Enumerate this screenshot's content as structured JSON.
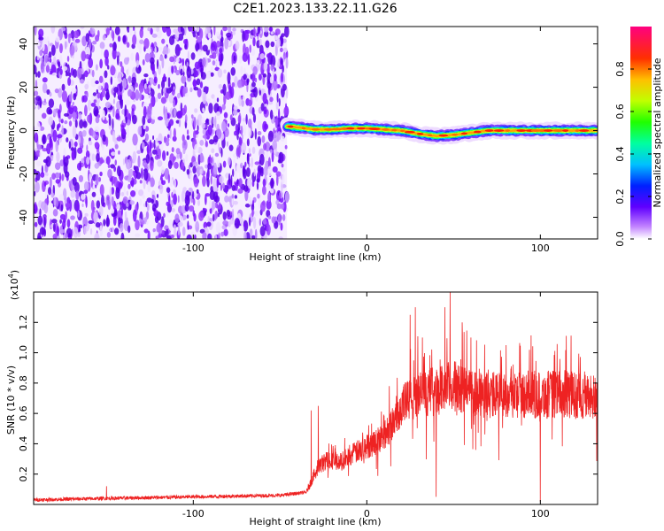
{
  "title": "C2E1.2023.133.22.11.G26",
  "chart_data": [
    {
      "type": "heatmap",
      "xlabel": "Height of straight line (km)",
      "ylabel": "Frequency (Hz)",
      "xlim": [
        -192,
        133
      ],
      "ylim": [
        -50,
        48
      ],
      "x_ticks": [
        -100,
        0,
        100
      ],
      "y_ticks": [
        -40,
        -20,
        0,
        20,
        40
      ],
      "noise_region": {
        "x": [
          -192,
          -46
        ],
        "frequency_range": [
          -50,
          48
        ]
      },
      "signal_track": [
        {
          "x": -46,
          "f": 2.0
        },
        {
          "x": -40,
          "f": 1.5
        },
        {
          "x": -30,
          "f": 0.5
        },
        {
          "x": -20,
          "f": 0.5
        },
        {
          "x": -10,
          "f": 1.0
        },
        {
          "x": 0,
          "f": 1.0
        },
        {
          "x": 10,
          "f": 0.5
        },
        {
          "x": 20,
          "f": 0.0
        },
        {
          "x": 30,
          "f": -1.5
        },
        {
          "x": 40,
          "f": -2.5
        },
        {
          "x": 50,
          "f": -2.0
        },
        {
          "x": 60,
          "f": -1.0
        },
        {
          "x": 70,
          "f": 0.0
        },
        {
          "x": 80,
          "f": 0.0
        },
        {
          "x": 90,
          "f": 0.0
        },
        {
          "x": 100,
          "f": 0.0
        },
        {
          "x": 110,
          "f": 0.0
        },
        {
          "x": 120,
          "f": 0.0
        },
        {
          "x": 133,
          "f": 0.0
        }
      ],
      "colorbar": {
        "label": "Normalized spectral amplitude",
        "range": [
          0,
          1
        ],
        "ticks": [
          "0.0",
          "0.2",
          "0.4",
          "0.6",
          "0.8"
        ]
      }
    },
    {
      "type": "line",
      "xlabel": "Height of straight line (km)",
      "ylabel": "SNR (10 * v/v)",
      "exponent_label": "(x10",
      "exponent_power": "4",
      "xlim": [
        -192,
        133
      ],
      "ylim": [
        0,
        1.4
      ],
      "x_ticks": [
        -100,
        0,
        100
      ],
      "y_ticks": [
        "0.2",
        "0.4",
        "0.6",
        "0.8",
        "1.0",
        "1.2"
      ],
      "line_color": "#ee2222",
      "envelope": [
        {
          "x": -192,
          "y": 0.03
        },
        {
          "x": -150,
          "y": 0.04
        },
        {
          "x": -100,
          "y": 0.05
        },
        {
          "x": -50,
          "y": 0.06
        },
        {
          "x": -35,
          "y": 0.08
        },
        {
          "x": -28,
          "y": 0.25
        },
        {
          "x": -22,
          "y": 0.3
        },
        {
          "x": -15,
          "y": 0.28
        },
        {
          "x": -10,
          "y": 0.32
        },
        {
          "x": 0,
          "y": 0.38
        },
        {
          "x": 10,
          "y": 0.45
        },
        {
          "x": 15,
          "y": 0.55
        },
        {
          "x": 20,
          "y": 0.65
        },
        {
          "x": 30,
          "y": 0.72
        },
        {
          "x": 40,
          "y": 0.75
        },
        {
          "x": 50,
          "y": 0.78
        },
        {
          "x": 60,
          "y": 0.75
        },
        {
          "x": 70,
          "y": 0.72
        },
        {
          "x": 80,
          "y": 0.72
        },
        {
          "x": 90,
          "y": 0.73
        },
        {
          "x": 100,
          "y": 0.72
        },
        {
          "x": 110,
          "y": 0.73
        },
        {
          "x": 120,
          "y": 0.72
        },
        {
          "x": 133,
          "y": 0.7
        }
      ],
      "spikes": [
        {
          "x": -150,
          "y": 0.12
        },
        {
          "x": -32,
          "y": 0.62
        },
        {
          "x": -28,
          "y": 0.65
        },
        {
          "x": 25,
          "y": 1.25
        },
        {
          "x": 28,
          "y": 1.3
        },
        {
          "x": 32,
          "y": 1.1
        },
        {
          "x": 40,
          "y": 1.0
        },
        {
          "x": 45,
          "y": 1.3
        },
        {
          "x": 48,
          "y": 1.4
        },
        {
          "x": 55,
          "y": 1.2
        },
        {
          "x": 60,
          "y": 1.1
        },
        {
          "x": 100,
          "y": 1.2
        }
      ],
      "dips": [
        {
          "x": 40,
          "y": 0.05
        },
        {
          "x": 100,
          "y": 0.02
        }
      ]
    }
  ]
}
